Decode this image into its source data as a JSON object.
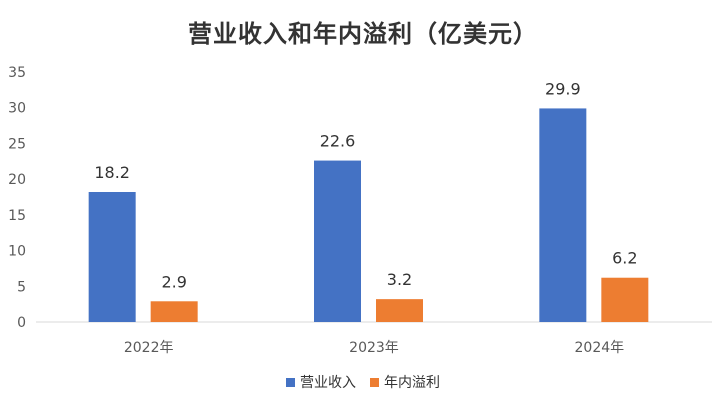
{
  "chart_data": {
    "type": "bar",
    "title": "营业收入和年内溢利（亿美元）",
    "categories": [
      "2022年",
      "2023年",
      "2024年"
    ],
    "series": [
      {
        "name": "营业收入",
        "values": [
          18.2,
          22.6,
          29.9
        ],
        "color": "#4472C4"
      },
      {
        "name": "年内溢利",
        "values": [
          2.9,
          3.2,
          6.2
        ],
        "color": "#ED7D31"
      }
    ],
    "ylim": [
      0,
      35
    ],
    "yticks": [
      0,
      5,
      10,
      15,
      20,
      25,
      30,
      35
    ],
    "xlabel": "",
    "ylabel": "",
    "grid": false,
    "legend_position": "bottom",
    "data_labels": true
  }
}
